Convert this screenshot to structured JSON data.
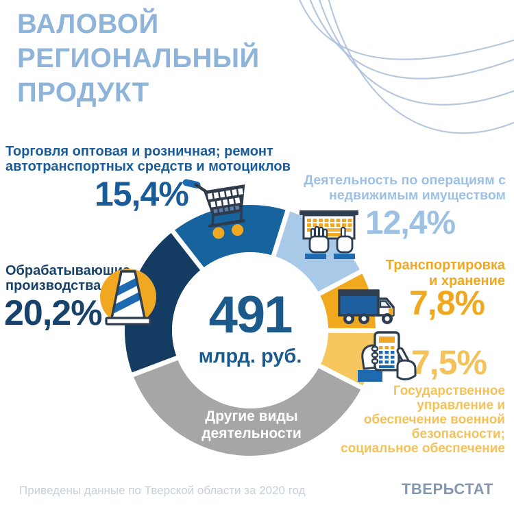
{
  "title": {
    "lines": [
      "ВАЛОВОЙ",
      "РЕГИОНАЛЬНЫЙ",
      "ПРОДУКТ"
    ],
    "color": "#8fb4da"
  },
  "labels": {
    "trade": {
      "lines": [
        "Торговля оптовая и розничная; ремонт",
        "автотранспортных средств и мотоциклов"
      ],
      "pct": "15,4%",
      "color": "#1a5c99"
    },
    "realty": {
      "lines": [
        "Деятельность по операциям с",
        "недвижимым имуществом"
      ],
      "pct": "12,4%",
      "color": "#9cc1e5"
    },
    "transport": {
      "lines": [
        "Транспортировка",
        "и хранение"
      ],
      "pct": "7,8%",
      "color": "#f0a81e"
    },
    "government": {
      "lines": [
        "Государственное",
        "управление и",
        "обеспечение военной",
        "безопасности;",
        "социальное обеспечение"
      ],
      "pct": "7,5%",
      "color": "#f4c25a"
    },
    "manufacturing": {
      "lines": [
        "Обрабатывающие",
        "производства"
      ],
      "pct": "20,2%",
      "color": "#17426b"
    },
    "other": {
      "lines": [
        "Другие виды",
        "деятельности"
      ],
      "color": "#ffffff"
    }
  },
  "footer": {
    "note": "Приведены данные по Тверской области за 2020 год",
    "brand": "ТВЕРЬСТАТ"
  },
  "icons": [
    "shopping-cart",
    "real-estate-hands",
    "truck",
    "calculator-hands",
    "traffic-cone"
  ],
  "colors": {
    "accent_dark_navy": "#143c63",
    "accent_blue": "#16639e",
    "accent_light_blue": "#a9c9e9",
    "accent_orange": "#f0a81e",
    "accent_light_yellow": "#f6c75e",
    "accent_gray": "#a6a6a6",
    "icon_outline": "#2d3e50",
    "icon_blue": "#1d6ab0"
  },
  "chart_data": {
    "type": "pie",
    "title": "Валовой региональный продукт",
    "legend_position": "around",
    "start_angle_deg": -38,
    "gap_color": "#ffffff",
    "donut": {
      "center_value": "491",
      "center_unit": "млрд. руб.",
      "outer_radius": 183,
      "inner_radius": 114
    },
    "slices": [
      {
        "name": "trade",
        "label": "Торговля оптовая и розничная; ремонт автотранспортных средств и мотоциклов",
        "value": 15.4,
        "display": "15,4%",
        "color": "#16639e"
      },
      {
        "name": "realty",
        "label": "Деятельность по операциям с недвижимым имуществом",
        "value": 12.4,
        "display": "12,4%",
        "color": "#a9c9e9"
      },
      {
        "name": "transport",
        "label": "Транспортировка и хранение",
        "value": 7.8,
        "display": "7,8%",
        "color": "#f0a81e"
      },
      {
        "name": "government",
        "label": "Государственное управление и обеспечение военной безопасности; социальное обеспечение",
        "value": 7.5,
        "display": "7,5%",
        "color": "#f6c75e"
      },
      {
        "name": "other",
        "label": "Другие виды деятельности",
        "value": 36.7,
        "display": "",
        "color": "#a6a6a6"
      },
      {
        "name": "manufacturing",
        "label": "Обрабатывающие производства",
        "value": 20.2,
        "display": "20,2%",
        "color": "#143c63"
      }
    ]
  }
}
